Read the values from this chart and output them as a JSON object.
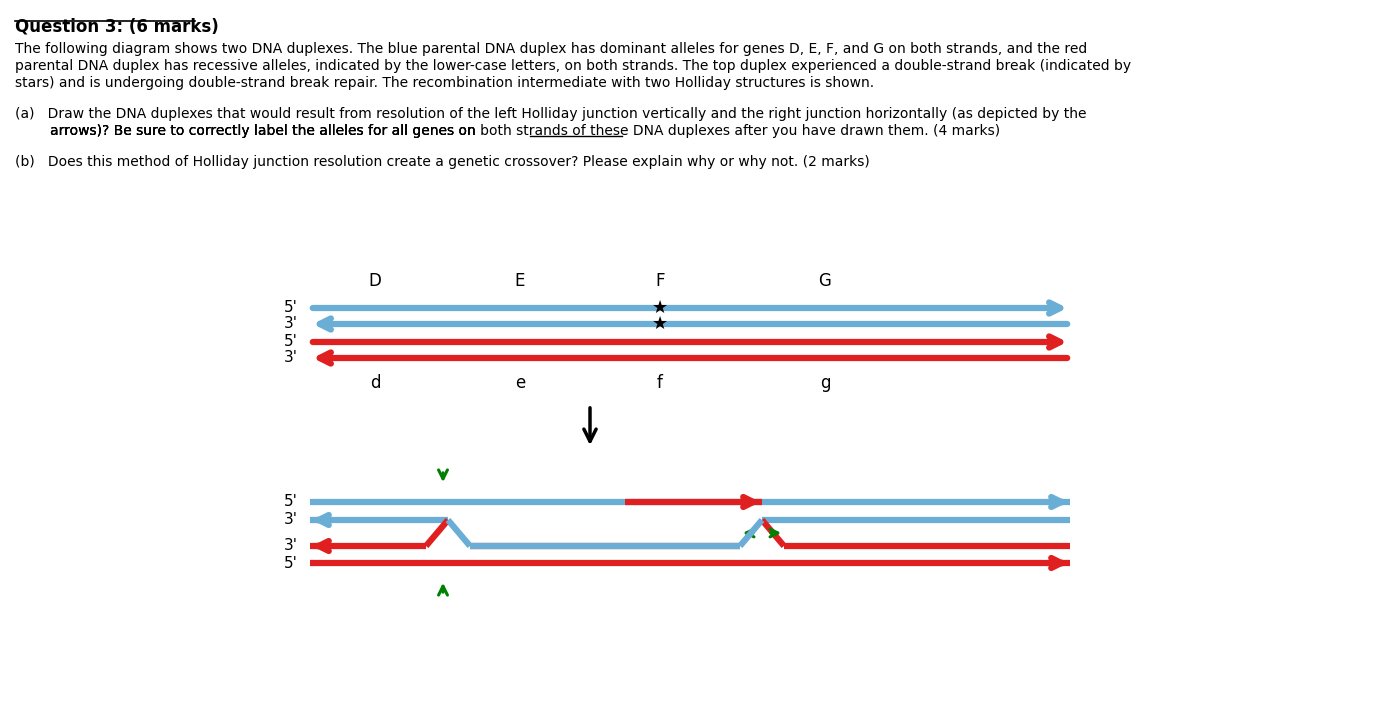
{
  "title": "Question 3: (6 marks)",
  "bg_color": "#ffffff",
  "blue_color": "#6aaed6",
  "red_color": "#e02020",
  "green_color": "#008000",
  "black_color": "#000000",
  "paragraph1": "The following diagram shows two DNA duplexes. The blue parental DNA duplex has dominant alleles for genes D, E, F, and G on both strands, and the red",
  "paragraph1b": "parental DNA duplex has recessive alleles, indicated by the lower-case letters, on both strands. The top duplex experienced a double-strand break (indicated by",
  "paragraph1c": "stars) and is undergoing double-strand break repair. The recombination intermediate with two Holliday structures is shown.",
  "paragraph_a": "(a)   Draw the DNA duplexes that would result from resolution of the left Holliday junction vertically and the right junction horizontally (as depicted by the",
  "paragraph_a2": "        arrows)? Be sure to correctly label the alleles for all genes on",
  "paragraph_a2b": " both strands",
  "paragraph_a2c": " of these DNA duplexes after you have drawn them. ",
  "paragraph_a2d": "(4 marks)",
  "paragraph_b": "(b)   Does this method of Holliday junction resolution create a genetic crossover? Please explain why or why not. ",
  "paragraph_b2": "(2 marks)"
}
